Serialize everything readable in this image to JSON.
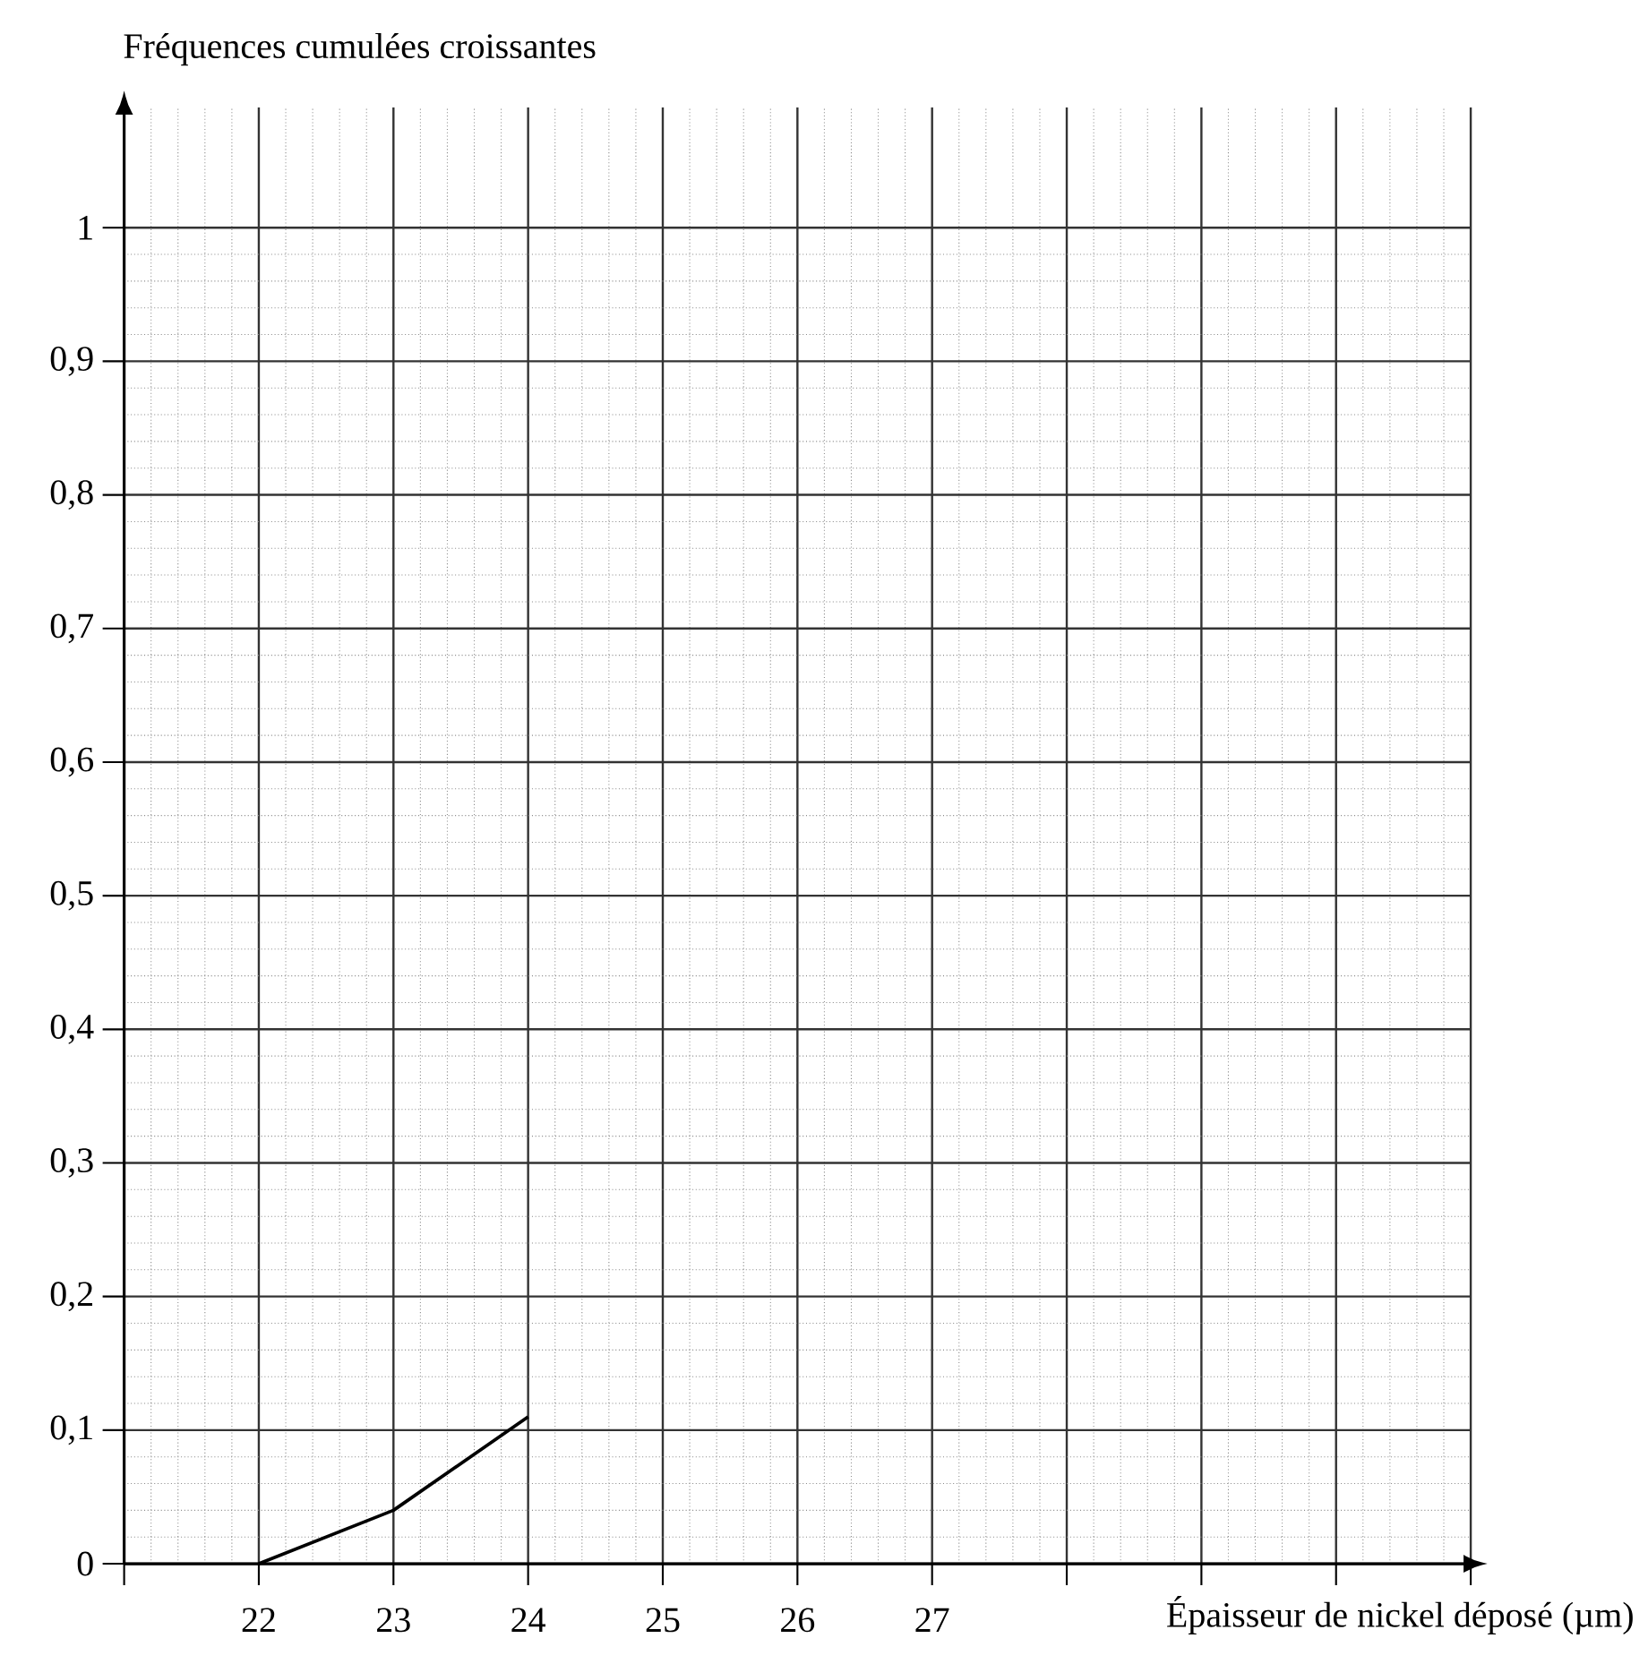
{
  "chart_data": {
    "type": "line",
    "ylabel": "Fréquences cumulées croissantes",
    "xlabel": "Épaisseur de nickel déposé (µm)",
    "x": [
      22,
      23,
      24
    ],
    "values": [
      0,
      0.04,
      0.11
    ],
    "color": "#000000",
    "xlim": [
      21,
      31
    ],
    "ylim": [
      0,
      1.09
    ],
    "xticks": [
      {
        "value": 21,
        "label": null
      },
      22,
      23,
      24,
      25,
      26,
      27,
      {
        "value": 28,
        "label": null
      },
      {
        "value": 29,
        "label": null
      },
      {
        "value": 30,
        "label": null
      },
      {
        "value": 31,
        "label": null
      }
    ],
    "yticks": [
      0,
      {
        "value": 0.1,
        "label": "0,1"
      },
      {
        "value": 0.2,
        "label": "0,2"
      },
      {
        "value": 0.3,
        "label": "0,3"
      },
      {
        "value": 0.4,
        "label": "0,4"
      },
      {
        "value": 0.5,
        "label": "0,5"
      },
      {
        "value": 0.6,
        "label": "0,6"
      },
      {
        "value": 0.7,
        "label": "0,7"
      },
      {
        "value": 0.8,
        "label": "0,8"
      },
      {
        "value": 0.9,
        "label": "0,9"
      },
      {
        "value": 1,
        "label": "1"
      }
    ],
    "grid": true
  }
}
